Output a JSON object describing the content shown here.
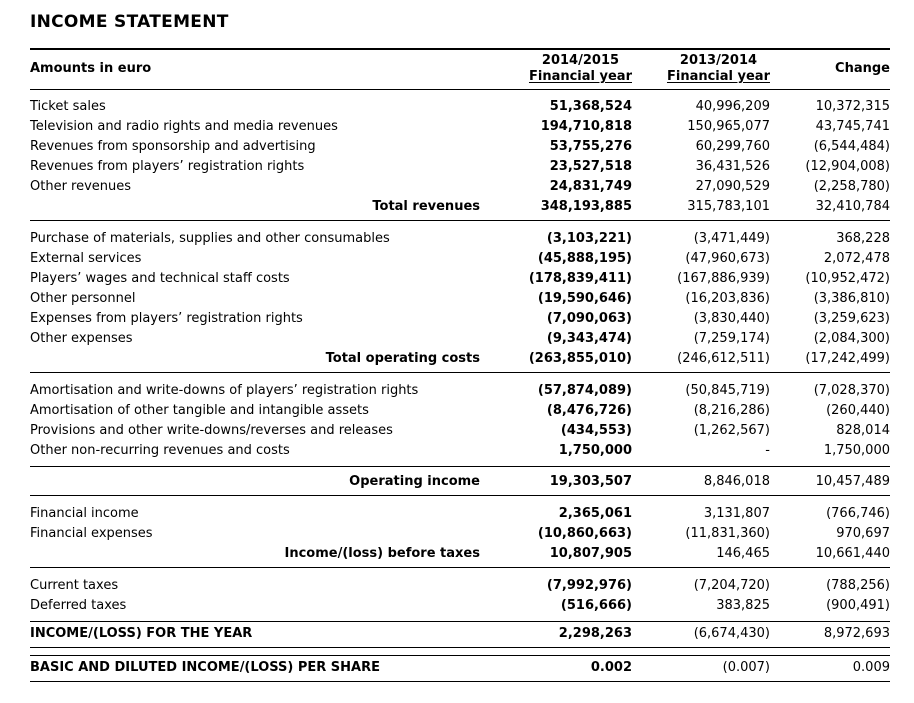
{
  "title": "INCOME STATEMENT",
  "header": {
    "amounts_label": "Amounts in euro",
    "col_fy_current": {
      "year": "2014/2015",
      "sub": "Financial year"
    },
    "col_fy_prior": {
      "year": "2013/2014",
      "sub": "Financial year"
    },
    "col_change": "Change"
  },
  "sections": [
    {
      "name": "revenues",
      "rows": [
        {
          "label": "Ticket sales",
          "fy_2014_2015": "51,368,524",
          "fy_2013_2014": "40,996,209",
          "change": "10,372,315"
        },
        {
          "label": "Television and radio rights and media revenues",
          "fy_2014_2015": "194,710,818",
          "fy_2013_2014": "150,965,077",
          "change": "43,745,741"
        },
        {
          "label": "Revenues from sponsorship and advertising",
          "fy_2014_2015": "53,755,276",
          "fy_2013_2014": "60,299,760",
          "change": "(6,544,484)"
        },
        {
          "label": "Revenues from players’ registration rights",
          "fy_2014_2015": "23,527,518",
          "fy_2013_2014": "36,431,526",
          "change": "(12,904,008)"
        },
        {
          "label": "Other revenues",
          "fy_2014_2015": "24,831,749",
          "fy_2013_2014": "27,090,529",
          "change": "(2,258,780)"
        }
      ],
      "total": {
        "label": "Total revenues",
        "fy_2014_2015": "348,193,885",
        "fy_2013_2014": "315,783,101",
        "change": "32,410,784",
        "style": "total"
      }
    },
    {
      "name": "operating-costs",
      "rows": [
        {
          "label": "Purchase of materials, supplies and other consumables",
          "fy_2014_2015": "(3,103,221)",
          "fy_2013_2014": "(3,471,449)",
          "change": "368,228"
        },
        {
          "label": "External services",
          "fy_2014_2015": "(45,888,195)",
          "fy_2013_2014": "(47,960,673)",
          "change": "2,072,478"
        },
        {
          "label": "Players’ wages and technical staff costs",
          "fy_2014_2015": "(178,839,411)",
          "fy_2013_2014": "(167,886,939)",
          "change": "(10,952,472)"
        },
        {
          "label": "Other personnel",
          "fy_2014_2015": "(19,590,646)",
          "fy_2013_2014": "(16,203,836)",
          "change": "(3,386,810)"
        },
        {
          "label": "Expenses from players’ registration rights",
          "fy_2014_2015": "(7,090,063)",
          "fy_2013_2014": "(3,830,440)",
          "change": "(3,259,623)"
        },
        {
          "label": "Other expenses",
          "fy_2014_2015": "(9,343,474)",
          "fy_2013_2014": "(7,259,174)",
          "change": "(2,084,300)"
        }
      ],
      "total": {
        "label": "Total operating costs",
        "fy_2014_2015": "(263,855,010)",
        "fy_2013_2014": "(246,612,511)",
        "change": "(17,242,499)",
        "style": "total"
      }
    },
    {
      "name": "amortisation-provisions",
      "rows": [
        {
          "label": "Amortisation and write-downs of players’ registration rights",
          "fy_2014_2015": "(57,874,089)",
          "fy_2013_2014": "(50,845,719)",
          "change": "(7,028,370)"
        },
        {
          "label": "Amortisation of other tangible and intangible assets",
          "fy_2014_2015": "(8,476,726)",
          "fy_2013_2014": "(8,216,286)",
          "change": "(260,440)"
        },
        {
          "label": "Provisions and other write-downs/reverses and releases",
          "fy_2014_2015": "(434,553)",
          "fy_2013_2014": "(1,262,567)",
          "change": "828,014"
        },
        {
          "label": "Other non-recurring revenues and costs",
          "fy_2014_2015": "1,750,000",
          "fy_2013_2014": "-",
          "change": "1,750,000"
        }
      ],
      "total": {
        "label": "Operating income",
        "fy_2014_2015": "19,303,507",
        "fy_2013_2014": "8,846,018",
        "change": "10,457,489",
        "style": "total",
        "rule_above": true
      }
    },
    {
      "name": "financial",
      "rows": [
        {
          "label": "Financial income",
          "fy_2014_2015": "2,365,061",
          "fy_2013_2014": "3,131,807",
          "change": "(766,746)"
        },
        {
          "label": "Financial expenses",
          "fy_2014_2015": "(10,860,663)",
          "fy_2013_2014": "(11,831,360)",
          "change": "970,697"
        }
      ],
      "total": {
        "label": "Income/(loss) before taxes",
        "fy_2014_2015": "10,807,905",
        "fy_2013_2014": "146,465",
        "change": "10,661,440",
        "style": "total"
      }
    },
    {
      "name": "taxes",
      "rows": [
        {
          "label": "Current taxes",
          "fy_2014_2015": "(7,992,976)",
          "fy_2013_2014": "(7,204,720)",
          "change": "(788,256)"
        },
        {
          "label": "Deferred taxes",
          "fy_2014_2015": "(516,666)",
          "fy_2013_2014": "383,825",
          "change": "(900,491)"
        }
      ],
      "total": {
        "label": "INCOME/(LOSS) FOR THE YEAR",
        "fy_2014_2015": "2,298,263",
        "fy_2013_2014": "(6,674,430)",
        "change": "8,972,693",
        "style": "grand"
      }
    },
    {
      "name": "per-share",
      "rows": [],
      "total": {
        "label": "BASIC AND DILUTED INCOME/(LOSS) PER SHARE",
        "fy_2014_2015": "0.002",
        "fy_2013_2014": "(0.007)",
        "change": "0.009",
        "style": "grand"
      }
    }
  ]
}
